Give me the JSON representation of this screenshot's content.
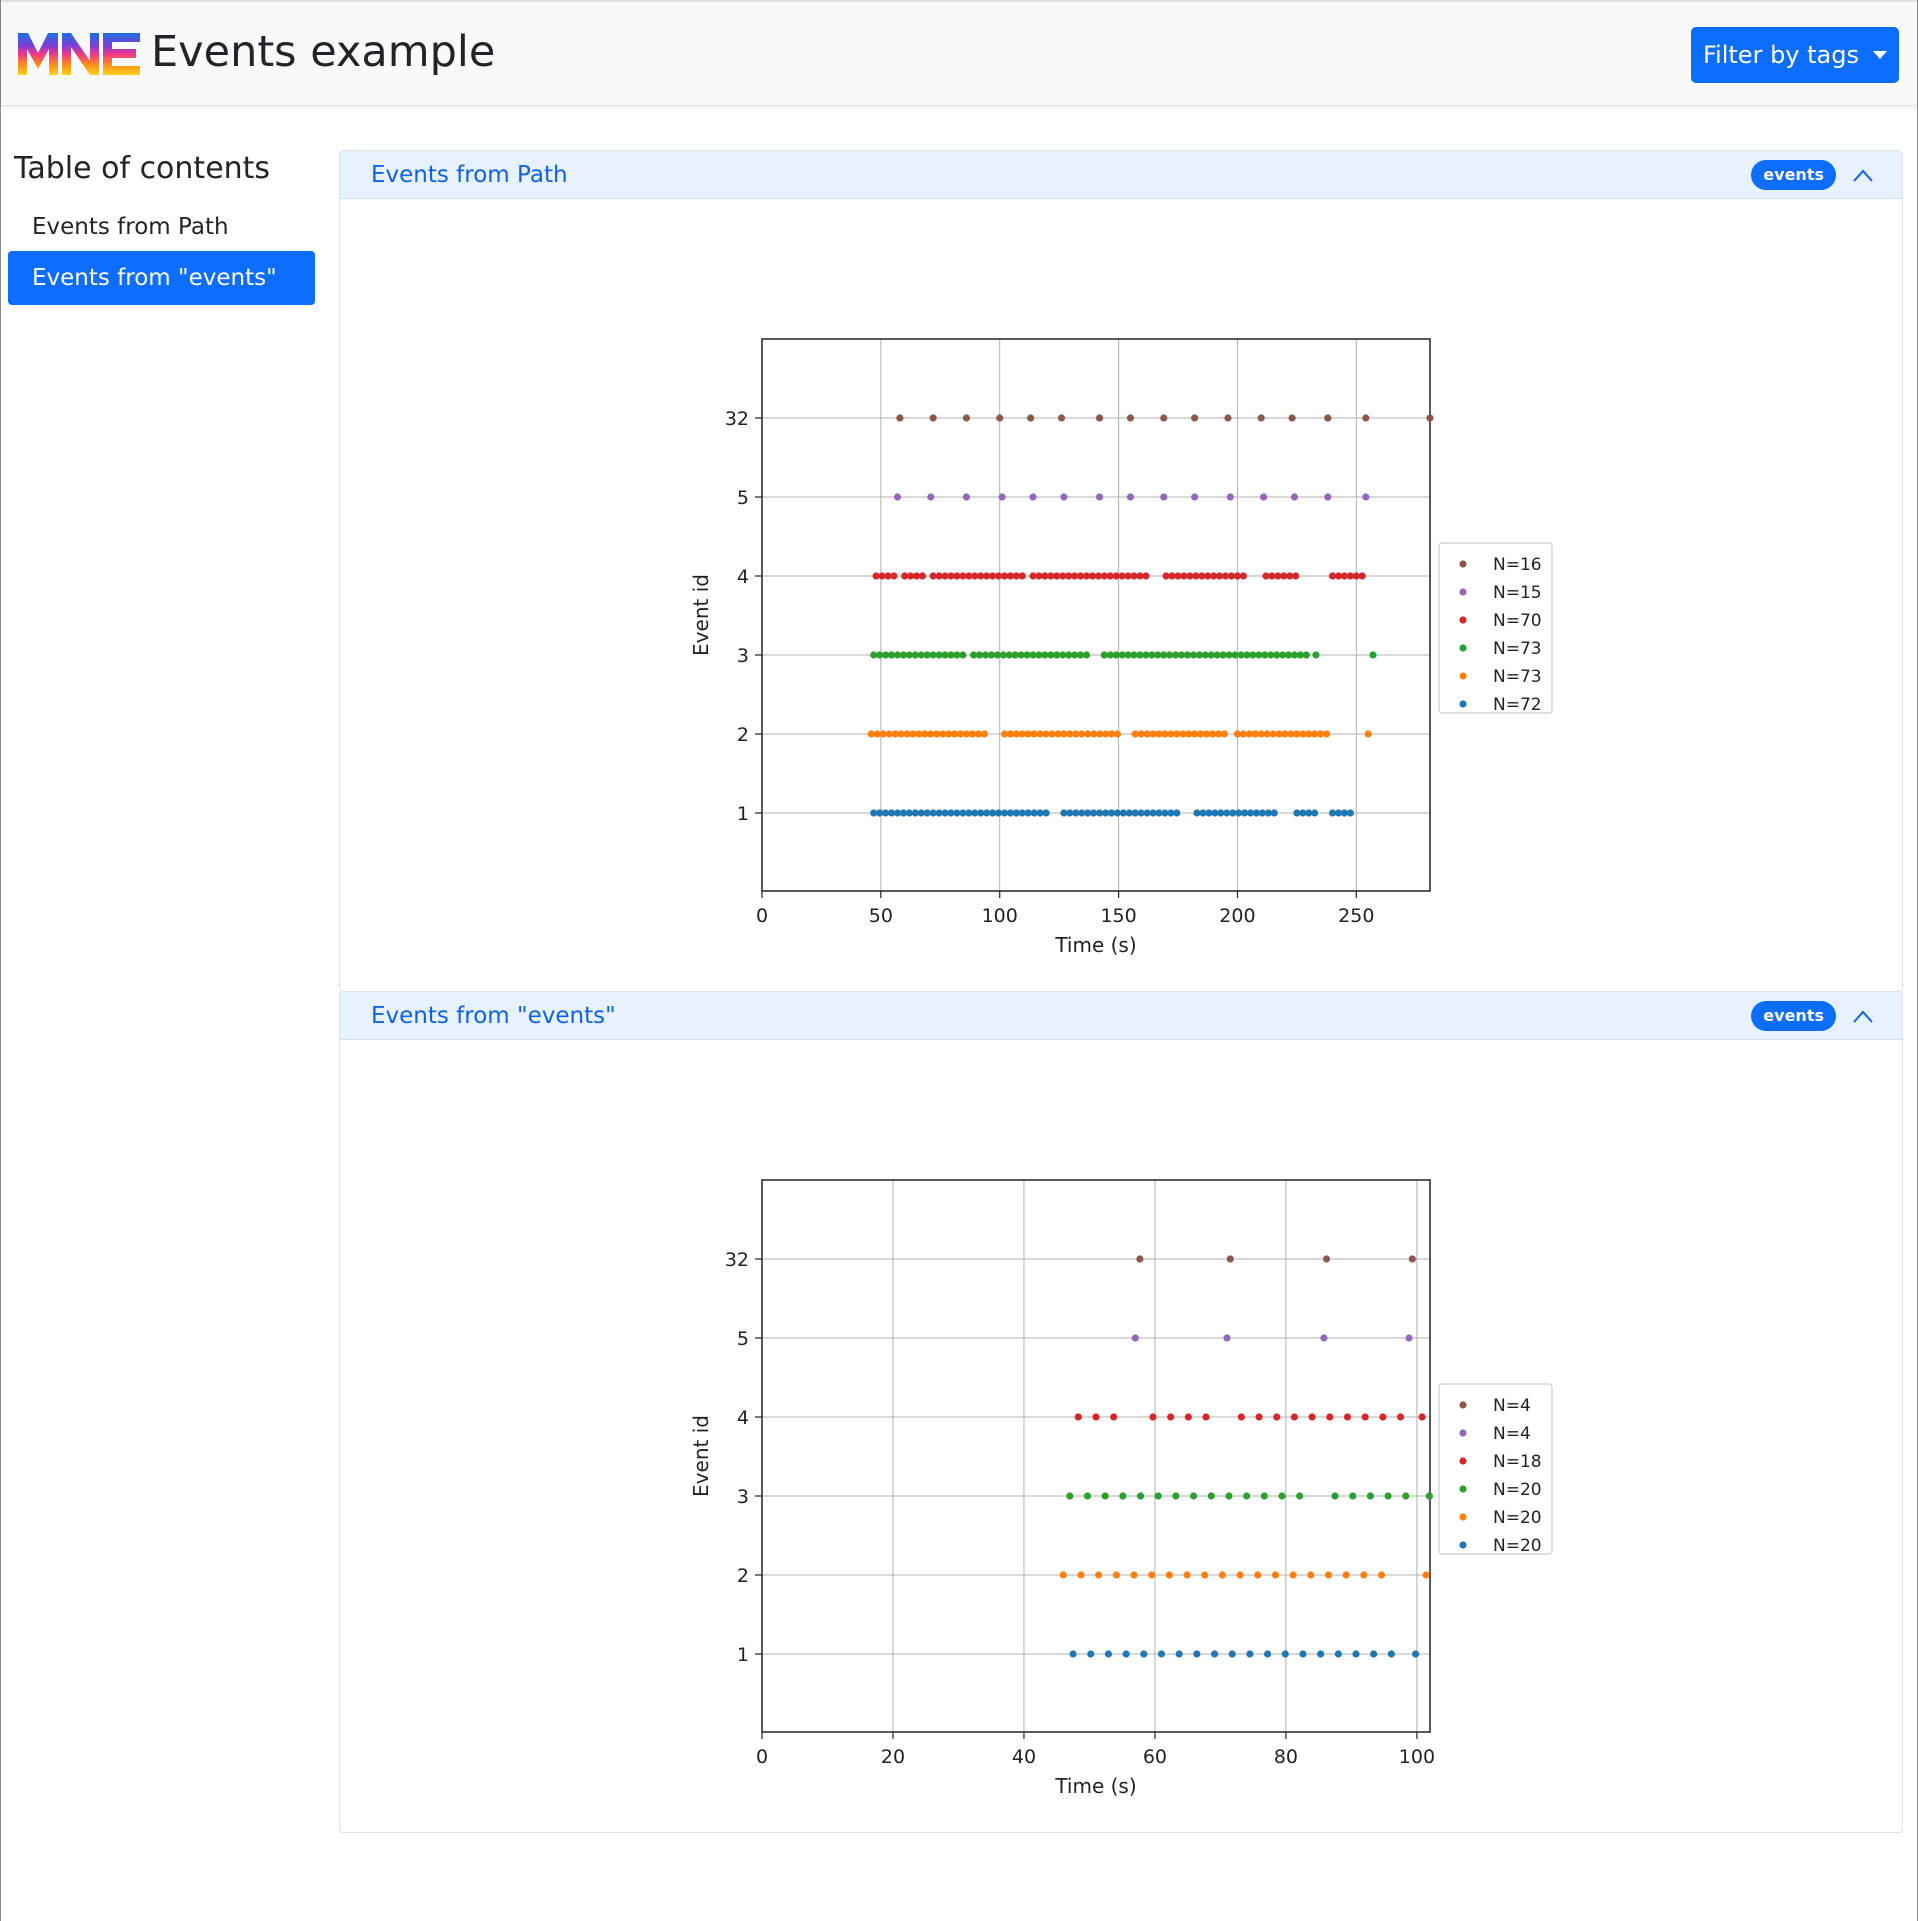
{
  "header": {
    "title": "Events example",
    "filter_button": "Filter by tags"
  },
  "toc": {
    "heading": "Table of contents",
    "items": [
      {
        "label": "Events from Path",
        "active": false
      },
      {
        "label": "Events from \"events\"",
        "active": true
      }
    ]
  },
  "sections": [
    {
      "title": "Events from Path",
      "badge": "events"
    },
    {
      "title": "Events from \"events\"",
      "badge": "events"
    }
  ],
  "colors": {
    "accent": "#0d6efd",
    "header_bg": "#e7f1ff",
    "series": {
      "1": "#1f77b4",
      "2": "#ff7f0e",
      "3": "#2ca02c",
      "4": "#d62728",
      "5": "#9467bd",
      "32": "#8c564b"
    }
  },
  "chart_data": [
    {
      "type": "scatter",
      "xlabel": "Time (s)",
      "ylabel": "Event id",
      "xlim": [
        0,
        281
      ],
      "xticks": [
        0,
        50,
        100,
        150,
        200,
        250
      ],
      "yticks": [
        "1",
        "2",
        "3",
        "4",
        "5",
        "32"
      ],
      "grid": true,
      "legend_position": "outside-right",
      "series": [
        {
          "name": "N=16",
          "event_id": "32",
          "x": [
            58,
            72,
            86,
            100,
            113,
            126,
            142,
            155,
            169,
            182,
            196,
            210,
            223,
            238,
            254,
            281
          ]
        },
        {
          "name": "N=15",
          "event_id": "5",
          "x": [
            57,
            71,
            86,
            101,
            114,
            127,
            142,
            155,
            169,
            182,
            197,
            211,
            224,
            238,
            254
          ]
        },
        {
          "name": "N=70",
          "event_id": "4",
          "x": [
            48,
            50.5,
            53,
            55.5,
            60,
            62.5,
            65,
            67.5,
            72,
            74.5,
            77,
            79.5,
            82,
            84.5,
            87,
            89.5,
            92,
            94.5,
            97,
            99.5,
            102,
            104.5,
            107,
            109.5,
            114,
            116.5,
            119,
            121.5,
            124,
            126.5,
            129,
            131.5,
            134,
            136.5,
            139,
            141.5,
            144,
            146.5,
            149,
            151.5,
            154,
            156.5,
            159,
            161.5,
            170,
            172.5,
            175,
            177.5,
            180,
            182.5,
            185,
            187.5,
            190,
            192.5,
            195,
            197.5,
            200,
            202.5,
            212,
            214.5,
            217,
            219.5,
            222,
            224.5,
            240,
            242.5,
            245,
            247.5,
            250,
            252.5
          ]
        },
        {
          "name": "N=73",
          "event_id": "3",
          "x": [
            47,
            49.5,
            52,
            54.5,
            57,
            59.5,
            62,
            64.5,
            67,
            69.5,
            72,
            74.5,
            77,
            79.5,
            82,
            84.5,
            89,
            91.5,
            94,
            96.5,
            99,
            101.5,
            104,
            106.5,
            109,
            111.5,
            114,
            116.5,
            119,
            121.5,
            124,
            126.5,
            129,
            131.5,
            134,
            136.5,
            144,
            146.5,
            149,
            151.5,
            154,
            156.5,
            159,
            161.5,
            164,
            166.5,
            169,
            171.5,
            174,
            176.5,
            179,
            181.5,
            184,
            186.5,
            189,
            191.5,
            194,
            196.5,
            199,
            201.5,
            204,
            206.5,
            209,
            211.5,
            214,
            216.5,
            219,
            221.5,
            224,
            226.5,
            229,
            233,
            257
          ]
        },
        {
          "name": "N=73",
          "event_id": "2",
          "x": [
            46,
            48.5,
            51,
            53.5,
            56,
            58.5,
            61,
            63.5,
            66,
            68.5,
            71,
            73.5,
            76,
            78.5,
            81,
            83.5,
            86,
            88.5,
            91,
            93.5,
            102,
            104.5,
            107,
            109.5,
            112,
            114.5,
            117,
            119.5,
            122,
            124.5,
            127,
            129.5,
            132,
            134.5,
            137,
            139.5,
            142,
            144.5,
            147,
            149.5,
            157,
            159.5,
            162,
            164.5,
            167,
            169.5,
            172,
            174.5,
            177,
            179.5,
            182,
            184.5,
            187,
            189.5,
            192,
            194.5,
            200,
            202.5,
            205,
            207.5,
            210,
            212.5,
            215,
            217.5,
            220,
            222.5,
            225,
            227.5,
            230,
            232.5,
            235,
            237.5,
            255
          ]
        },
        {
          "name": "N=72",
          "event_id": "1",
          "x": [
            47,
            49.5,
            52,
            54.5,
            57,
            59.5,
            62,
            64.5,
            67,
            69.5,
            72,
            74.5,
            77,
            79.5,
            82,
            84.5,
            87,
            89.5,
            92,
            94.5,
            97,
            99.5,
            102,
            104.5,
            107,
            109.5,
            112,
            114.5,
            117,
            119.5,
            127,
            129.5,
            132,
            134.5,
            137,
            139.5,
            142,
            144.5,
            147,
            149.5,
            152,
            154.5,
            157,
            159.5,
            162,
            164.5,
            167,
            169.5,
            172,
            174.5,
            183,
            185.5,
            188,
            190.5,
            193,
            195.5,
            198,
            200.5,
            203,
            205.5,
            208,
            210.5,
            213,
            215.5,
            225,
            227.5,
            230,
            232.5,
            240,
            242.5,
            245,
            247.5
          ]
        }
      ]
    },
    {
      "type": "scatter",
      "xlabel": "Time (s)",
      "ylabel": "Event id",
      "xlim": [
        0,
        102
      ],
      "xticks": [
        0,
        20,
        40,
        60,
        80,
        100
      ],
      "yticks": [
        "1",
        "2",
        "3",
        "4",
        "5",
        "32"
      ],
      "grid": true,
      "legend_position": "outside-right",
      "series": [
        {
          "name": "N=4",
          "event_id": "32",
          "x": [
            57.7,
            71.5,
            86.2,
            99.3
          ]
        },
        {
          "name": "N=4",
          "event_id": "5",
          "x": [
            57.0,
            71.0,
            85.8,
            98.8
          ]
        },
        {
          "name": "N=18",
          "event_id": "4",
          "x": [
            48.3,
            51.0,
            53.7,
            59.7,
            62.4,
            65.1,
            67.8,
            73.2,
            75.9,
            78.6,
            81.3,
            84.0,
            86.7,
            89.4,
            92.1,
            94.8,
            97.5,
            100.8
          ]
        },
        {
          "name": "N=20",
          "event_id": "3",
          "x": [
            47.0,
            49.7,
            52.4,
            55.1,
            57.8,
            60.5,
            63.2,
            65.9,
            68.6,
            71.3,
            74.0,
            76.7,
            79.4,
            82.1,
            87.5,
            90.2,
            92.9,
            95.6,
            98.3,
            101.9
          ]
        },
        {
          "name": "N=20",
          "event_id": "2",
          "x": [
            46.0,
            48.7,
            51.4,
            54.1,
            56.8,
            59.5,
            62.2,
            64.9,
            67.6,
            70.3,
            73.0,
            75.7,
            78.4,
            81.1,
            83.8,
            86.5,
            89.2,
            91.9,
            94.6,
            101.4
          ]
        },
        {
          "name": "N=20",
          "event_id": "1",
          "x": [
            47.5,
            50.2,
            52.9,
            55.6,
            58.3,
            61.0,
            63.7,
            66.4,
            69.1,
            71.8,
            74.5,
            77.2,
            79.9,
            82.6,
            85.3,
            88.0,
            90.7,
            93.4,
            96.1,
            99.8
          ]
        }
      ]
    }
  ]
}
